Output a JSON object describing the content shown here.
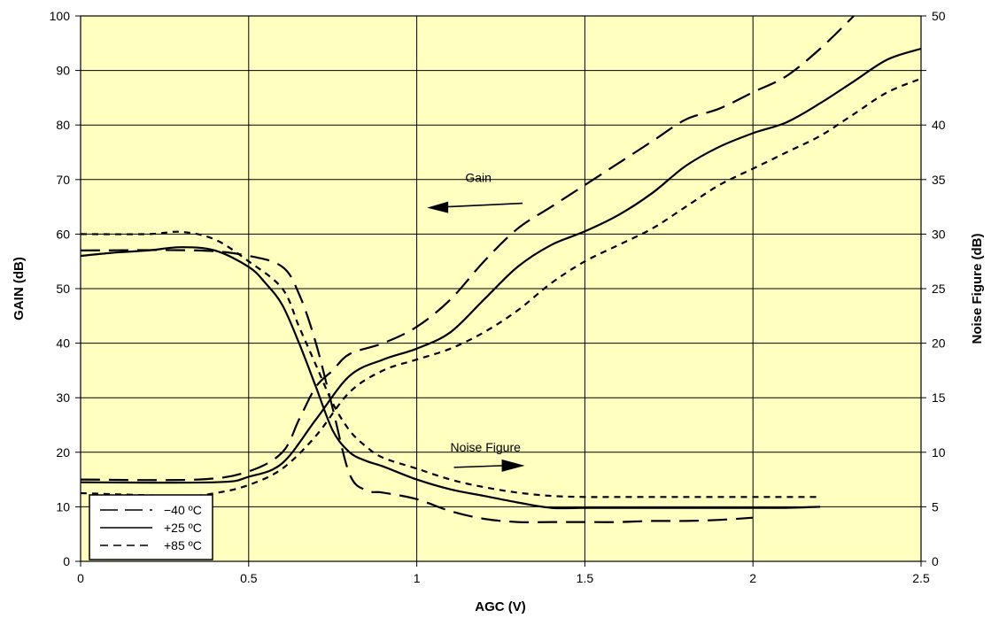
{
  "chart_data": {
    "type": "line",
    "xlabel": "AGC (V)",
    "ylabel_left": "GAIN (dB)",
    "ylabel_right": "Noise Figure (dB)",
    "xlim": [
      0,
      2.5
    ],
    "ylim_left": [
      0,
      100
    ],
    "ylim_right": [
      0,
      50
    ],
    "x_ticks": [
      "0",
      "0.5",
      "1",
      "1.5",
      "2",
      "2.5"
    ],
    "y_ticks_left": [
      "0",
      "10",
      "20",
      "30",
      "40",
      "50",
      "60",
      "70",
      "80",
      "90",
      "100"
    ],
    "y_ticks_right": [
      "0",
      "5",
      "10",
      "15",
      "20",
      "25",
      "30",
      "35",
      "40",
      "45",
      "50"
    ],
    "y_ticks_right_shown": [
      "0",
      "5",
      "10",
      "15",
      "20",
      "25",
      "30",
      "35",
      "40",
      "50"
    ],
    "grid": true,
    "plot_background": "#FFFFC0",
    "legend_position": "bottom-left",
    "legend": [
      {
        "label": "−40 ºC",
        "style": "long-dash"
      },
      {
        "label": "+25 ºC",
        "style": "solid"
      },
      {
        "label": "+85 ºC",
        "style": "short-dash"
      }
    ],
    "annotations": [
      {
        "text": "Gain",
        "arrow": "left",
        "x": 1.22,
        "y": 65
      },
      {
        "text": "Noise Figure",
        "arrow": "right",
        "x": 1.1,
        "y": 19.5
      }
    ],
    "series": [
      {
        "name": "Gain −40 ºC",
        "axis": "left",
        "style": "long-dash",
        "x": [
          0,
          0.35,
          0.5,
          0.6,
          0.65,
          0.7,
          0.75,
          0.8,
          0.9,
          1.0,
          1.1,
          1.2,
          1.3,
          1.4,
          1.5,
          1.6,
          1.7,
          1.8,
          1.9,
          2.0,
          2.1,
          2.2,
          2.3
        ],
        "y": [
          15,
          15,
          16.5,
          20,
          26,
          32,
          35,
          38,
          40,
          43,
          48,
          55,
          61,
          65,
          69,
          73,
          77,
          81,
          83,
          86,
          89,
          94,
          100
        ]
      },
      {
        "name": "Gain +25 ºC",
        "axis": "left",
        "style": "solid",
        "x": [
          0,
          0.4,
          0.5,
          0.6,
          0.7,
          0.8,
          0.9,
          1.0,
          1.1,
          1.2,
          1.3,
          1.4,
          1.5,
          1.6,
          1.7,
          1.8,
          1.9,
          2.0,
          2.1,
          2.2,
          2.3,
          2.4,
          2.5
        ],
        "y": [
          14.5,
          14.5,
          15.5,
          18,
          26,
          34,
          37,
          39,
          42,
          48,
          54,
          58,
          60.5,
          63.5,
          67.5,
          72.5,
          76,
          78.5,
          80.5,
          84,
          88,
          92,
          94
        ]
      },
      {
        "name": "Gain +85 ºC",
        "axis": "left",
        "style": "short-dash",
        "x": [
          0,
          0.3,
          0.4,
          0.5,
          0.6,
          0.7,
          0.8,
          0.9,
          1.0,
          1.1,
          1.2,
          1.3,
          1.4,
          1.5,
          1.6,
          1.7,
          1.8,
          1.9,
          2.0,
          2.1,
          2.2,
          2.3,
          2.4,
          2.5
        ],
        "y": [
          12.5,
          12,
          12.5,
          14,
          17,
          23,
          31,
          35,
          37,
          39,
          42,
          46,
          51,
          55,
          58,
          61,
          65,
          69,
          72,
          75,
          78,
          82,
          86,
          88.5
        ]
      },
      {
        "name": "NF −40 ºC",
        "axis": "right",
        "style": "long-dash",
        "x": [
          0,
          0.35,
          0.5,
          0.6,
          0.65,
          0.7,
          0.75,
          0.8,
          0.85,
          0.9,
          1.0,
          1.1,
          1.2,
          1.3,
          1.4,
          1.5,
          1.6,
          1.7,
          1.8,
          1.9,
          2.0
        ],
        "y": [
          28.5,
          28.5,
          28,
          27,
          24.5,
          20,
          14,
          8,
          6.5,
          6.3,
          5.7,
          4.6,
          3.9,
          3.6,
          3.6,
          3.6,
          3.6,
          3.7,
          3.7,
          3.8,
          4.0
        ]
      },
      {
        "name": "NF +25 ºC",
        "axis": "right",
        "style": "solid",
        "x": [
          0,
          0.1,
          0.2,
          0.3,
          0.4,
          0.5,
          0.55,
          0.6,
          0.65,
          0.7,
          0.75,
          0.8,
          0.85,
          0.9,
          1.0,
          1.1,
          1.2,
          1.3,
          1.4,
          1.5,
          1.6,
          1.7,
          1.8,
          1.9,
          2.0,
          2.1,
          2.2
        ],
        "y": [
          28,
          28.3,
          28.5,
          28.8,
          28.5,
          27,
          25.5,
          23.5,
          20,
          16,
          12,
          10,
          9.2,
          8.7,
          7.5,
          6.6,
          6,
          5.4,
          4.9,
          4.9,
          4.9,
          4.9,
          4.9,
          4.9,
          4.9,
          4.9,
          5
        ]
      },
      {
        "name": "NF +85 ºC",
        "axis": "right",
        "style": "short-dash",
        "x": [
          0,
          0.2,
          0.3,
          0.4,
          0.5,
          0.6,
          0.65,
          0.7,
          0.75,
          0.8,
          0.85,
          0.9,
          1.0,
          1.1,
          1.2,
          1.3,
          1.4,
          1.5,
          1.6,
          1.7,
          1.8,
          1.9,
          2.0,
          2.1,
          2.2
        ],
        "y": [
          30,
          30,
          30.2,
          29.5,
          27.5,
          25,
          21.5,
          18,
          14.5,
          12,
          10.5,
          9.5,
          8.5,
          7.5,
          6.8,
          6.3,
          6,
          5.9,
          5.9,
          5.9,
          5.9,
          5.9,
          5.9,
          5.9,
          5.9
        ]
      }
    ]
  }
}
